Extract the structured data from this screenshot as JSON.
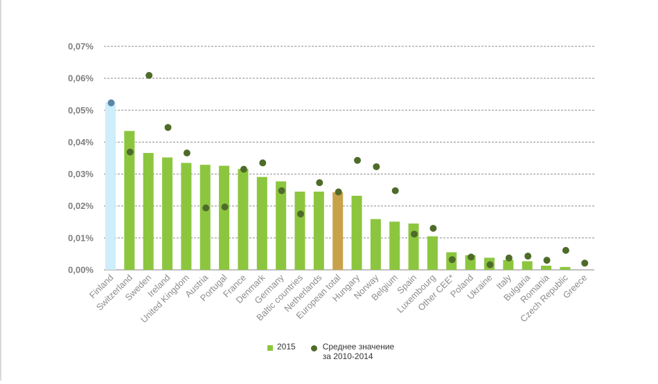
{
  "chart_data": {
    "type": "bar",
    "title": "",
    "xlabel": "",
    "ylabel": "",
    "ylim": [
      0,
      0.07
    ],
    "yticks": [
      "0,00%",
      "0,01%",
      "0,02%",
      "0,03%",
      "0,04%",
      "0,05%",
      "0,06%",
      "0,07%"
    ],
    "grid": true,
    "legend_position": "bottom",
    "categories": [
      "Finland",
      "Switzerland",
      "Sweden",
      "Ireland",
      "United Kingdom",
      "Austria",
      "Portugal",
      "France",
      "Denmark",
      "Germany",
      "Baltic countries",
      "Netherlands",
      "European total",
      "Hungary",
      "Norway",
      "Belgium",
      "Spain",
      "Luxembourg",
      "Other CEE*",
      "Poland",
      "Ukraine",
      "Italy",
      "Bulgaria",
      "Romania",
      "Czech Republic",
      "Greece"
    ],
    "highlights": {
      "Finland": "#cdeefa",
      "European total": "#c8a24a"
    },
    "series": [
      {
        "name": "2015",
        "kind": "bar",
        "color": "#8cc63f",
        "values": [
          0.0525,
          0.0435,
          0.0366,
          0.0352,
          0.0335,
          0.0329,
          0.0326,
          0.0316,
          0.0291,
          0.0277,
          0.0245,
          0.0245,
          0.0243,
          0.0232,
          0.0159,
          0.0151,
          0.0145,
          0.0105,
          0.0055,
          0.0046,
          0.0038,
          0.0031,
          0.0027,
          0.0013,
          0.0009,
          0.0
        ]
      },
      {
        "name": "Среднее значение\nза 2010-2014",
        "kind": "dot",
        "color": "#4f6b2a",
        "values": [
          0.0523,
          0.0369,
          0.0609,
          0.0446,
          0.0366,
          0.0194,
          0.0197,
          0.0315,
          0.0335,
          0.0248,
          0.0175,
          0.0273,
          0.0244,
          0.0343,
          0.0323,
          0.0248,
          0.0112,
          0.013,
          0.0032,
          0.004,
          0.0016,
          0.0037,
          0.0043,
          0.003,
          0.0061,
          0.0021
        ]
      }
    ],
    "marker_override": {
      "Finland": "#5b87a6"
    }
  },
  "legend": {
    "bar_label": "2015",
    "dot_label": "Среднее значение\nза 2010-2014",
    "bar_color": "#8cc63f",
    "dot_color": "#4f6b2a"
  }
}
